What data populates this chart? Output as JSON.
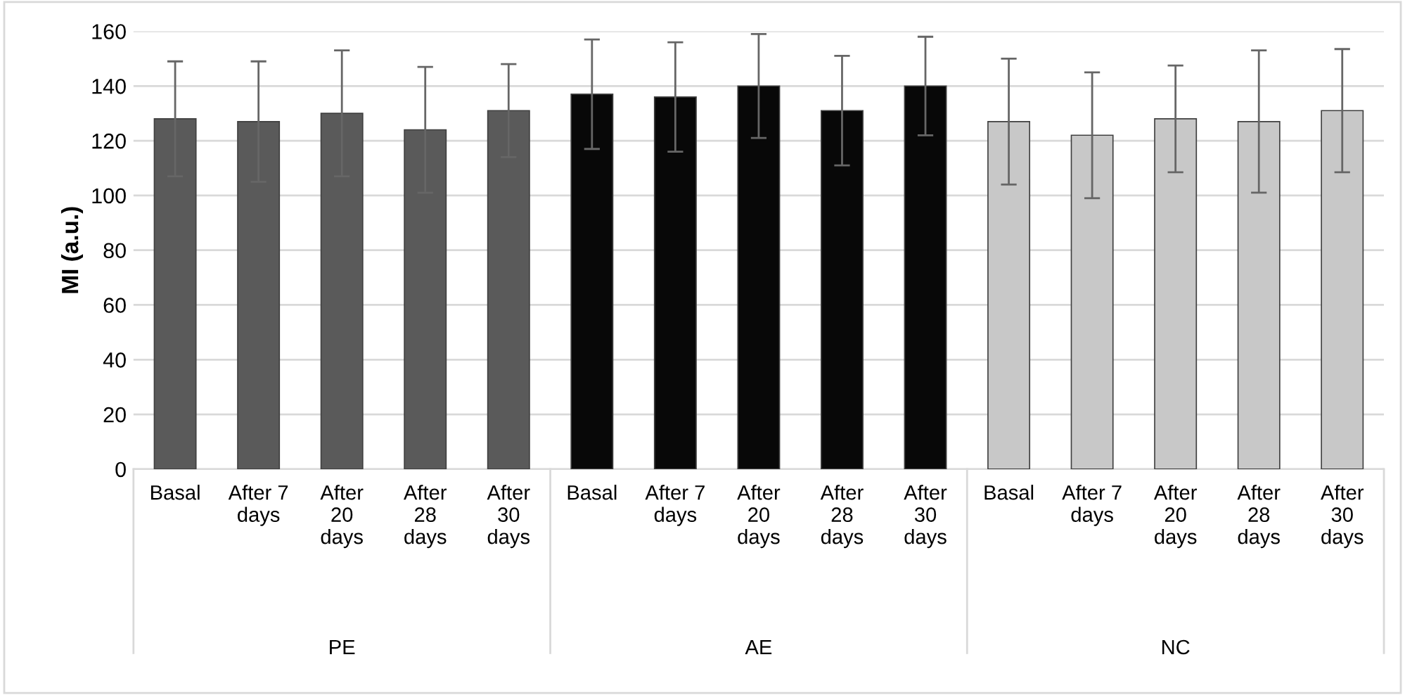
{
  "chart_data": {
    "type": "bar",
    "ylabel": "MI (a.u.)",
    "categories": [
      "Basal",
      "After 7\ndays",
      "After\n20\ndays",
      "After\n28\ndays",
      "After\n30\ndays",
      "Basal",
      "After 7\ndays",
      "After\n20\ndays",
      "After\n28\ndays",
      "After\n30\ndays",
      "Basal",
      "After 7\ndays",
      "After\n20\ndays",
      "After\n28\ndays",
      "After\n30\ndays"
    ],
    "values": [
      128,
      127,
      130,
      124,
      131,
      137,
      136,
      140,
      131,
      140,
      127,
      122,
      128,
      127,
      131
    ],
    "errors": [
      21,
      22,
      23,
      23,
      17,
      20,
      20,
      19,
      20,
      18,
      23,
      23,
      19.5,
      26,
      22.5
    ],
    "colors": [
      "#5a5a5a",
      "#5a5a5a",
      "#5a5a5a",
      "#5a5a5a",
      "#5a5a5a",
      "#080808",
      "#080808",
      "#080808",
      "#080808",
      "#080808",
      "#c8c8c8",
      "#c8c8c8",
      "#c8c8c8",
      "#c8c8c8",
      "#c8c8c8"
    ],
    "annotations": [
      "PE",
      "AE",
      "NC"
    ],
    "ylim": [
      0,
      160
    ],
    "yticks": [
      0,
      20,
      40,
      60,
      80,
      100,
      120,
      140,
      160
    ],
    "grid": "y",
    "legend": false
  }
}
